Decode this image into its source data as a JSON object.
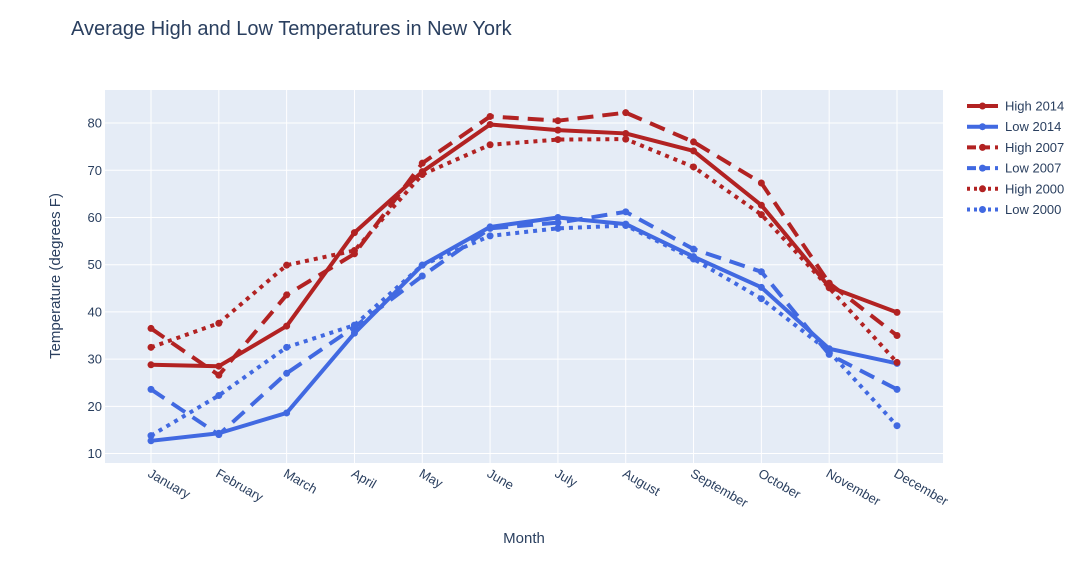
{
  "chart_data": {
    "type": "line",
    "title": "Average High and Low Temperatures in New York",
    "xlabel": "Month",
    "ylabel": "Temperature (degrees F)",
    "ylim": [
      8,
      87
    ],
    "yticks": [
      10,
      20,
      30,
      40,
      50,
      60,
      70,
      80
    ],
    "grid": true,
    "legend_position": "right",
    "categories": [
      "January",
      "February",
      "March",
      "April",
      "May",
      "June",
      "July",
      "August",
      "September",
      "October",
      "November",
      "December"
    ],
    "series": [
      {
        "name": "High 2014",
        "color": "#b22222",
        "dash": "solid",
        "values": [
          28.8,
          28.5,
          37.0,
          56.8,
          69.7,
          79.7,
          78.5,
          77.8,
          74.1,
          62.6,
          45.3,
          39.9
        ]
      },
      {
        "name": "Low 2014",
        "color": "#4169e1",
        "dash": "solid",
        "values": [
          12.7,
          14.3,
          18.6,
          35.5,
          49.9,
          58.0,
          60.0,
          58.6,
          51.7,
          45.2,
          32.2,
          29.1
        ]
      },
      {
        "name": "High 2007",
        "color": "#b22222",
        "dash": "dash",
        "values": [
          36.5,
          26.6,
          43.6,
          52.3,
          71.5,
          81.4,
          80.5,
          82.2,
          76.0,
          67.3,
          46.1,
          35.0
        ]
      },
      {
        "name": "Low 2007",
        "color": "#4169e1",
        "dash": "dash",
        "values": [
          23.6,
          14.0,
          27.0,
          36.8,
          47.6,
          57.7,
          58.9,
          61.2,
          53.3,
          48.5,
          31.0,
          23.6
        ]
      },
      {
        "name": "High 2000",
        "color": "#b22222",
        "dash": "dot",
        "values": [
          32.5,
          37.6,
          49.9,
          53.0,
          69.1,
          75.4,
          76.5,
          76.6,
          70.7,
          60.6,
          45.1,
          29.3
        ]
      },
      {
        "name": "Low 2000",
        "color": "#4169e1",
        "dash": "dot",
        "values": [
          13.8,
          22.3,
          32.5,
          37.2,
          49.9,
          56.1,
          57.7,
          58.3,
          51.2,
          42.8,
          31.6,
          15.9
        ]
      }
    ]
  }
}
